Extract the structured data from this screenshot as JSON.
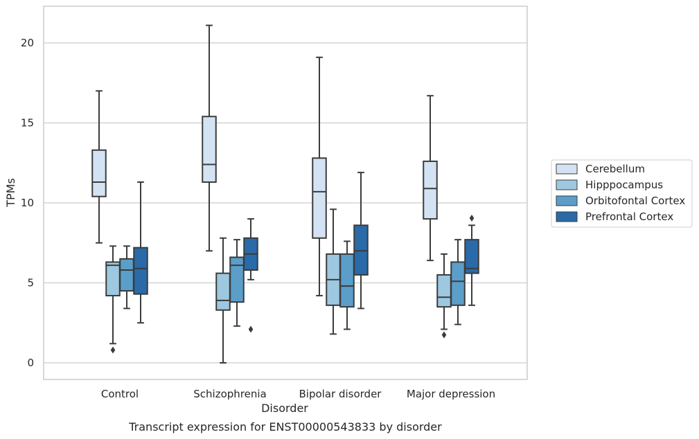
{
  "chart_data": {
    "type": "box",
    "caption": "Transcript expression for ENST00000543833 by disorder",
    "xlabel": "Disorder",
    "ylabel": "TPMs",
    "ylim": [
      -1,
      22.3
    ],
    "yticks": [
      0,
      5,
      10,
      15,
      20
    ],
    "grid": "horizontal",
    "legend_position": "right",
    "categories": [
      "Control",
      "Schizophrenia",
      "Bipolar disorder",
      "Major depression"
    ],
    "series": [
      {
        "name": "Cerebellum",
        "color": "#d3e3f3",
        "boxes": [
          {
            "whisker_low": 7.5,
            "q1": 10.4,
            "median": 11.3,
            "q3": 13.3,
            "whisker_high": 17.0,
            "outliers": []
          },
          {
            "whisker_low": 7.0,
            "q1": 11.3,
            "median": 12.4,
            "q3": 15.4,
            "whisker_high": 21.1,
            "outliers": []
          },
          {
            "whisker_low": 4.2,
            "q1": 7.8,
            "median": 10.7,
            "q3": 12.8,
            "whisker_high": 19.1,
            "outliers": []
          },
          {
            "whisker_low": 6.4,
            "q1": 9.0,
            "median": 10.9,
            "q3": 12.6,
            "whisker_high": 16.7,
            "outliers": []
          }
        ]
      },
      {
        "name": "Hipppocampus",
        "color": "#9dc8e0",
        "boxes": [
          {
            "whisker_low": 1.2,
            "q1": 4.2,
            "median": 6.1,
            "q3": 6.3,
            "whisker_high": 7.3,
            "outliers": [
              0.8
            ]
          },
          {
            "whisker_low": 0.0,
            "q1": 3.3,
            "median": 3.9,
            "q3": 5.6,
            "whisker_high": 7.8,
            "outliers": []
          },
          {
            "whisker_low": 1.8,
            "q1": 3.6,
            "median": 5.2,
            "q3": 6.8,
            "whisker_high": 9.6,
            "outliers": []
          },
          {
            "whisker_low": 2.1,
            "q1": 3.5,
            "median": 4.1,
            "q3": 5.5,
            "whisker_high": 6.8,
            "outliers": [
              1.75
            ]
          }
        ]
      },
      {
        "name": "Orbitofontal Cortex",
        "color": "#5b9ec9",
        "boxes": [
          {
            "whisker_low": 3.4,
            "q1": 4.5,
            "median": 5.8,
            "q3": 6.5,
            "whisker_high": 7.3,
            "outliers": []
          },
          {
            "whisker_low": 2.3,
            "q1": 3.8,
            "median": 6.1,
            "q3": 6.6,
            "whisker_high": 7.7,
            "outliers": []
          },
          {
            "whisker_low": 2.1,
            "q1": 3.5,
            "median": 4.8,
            "q3": 6.8,
            "whisker_high": 7.6,
            "outliers": []
          },
          {
            "whisker_low": 2.4,
            "q1": 3.6,
            "median": 5.1,
            "q3": 6.3,
            "whisker_high": 7.7,
            "outliers": []
          }
        ]
      },
      {
        "name": "Prefrontal Cortex",
        "color": "#2a6aa8",
        "boxes": [
          {
            "whisker_low": 2.5,
            "q1": 4.3,
            "median": 5.9,
            "q3": 7.2,
            "whisker_high": 11.3,
            "outliers": []
          },
          {
            "whisker_low": 5.2,
            "q1": 5.8,
            "median": 6.8,
            "q3": 7.8,
            "whisker_high": 9.0,
            "outliers": [
              2.1
            ]
          },
          {
            "whisker_low": 3.4,
            "q1": 5.5,
            "median": 7.0,
            "q3": 8.6,
            "whisker_high": 11.9,
            "outliers": []
          },
          {
            "whisker_low": 3.6,
            "q1": 5.6,
            "median": 5.9,
            "q3": 7.7,
            "whisker_high": 8.6,
            "outliers": [
              9.05
            ]
          }
        ]
      }
    ]
  }
}
